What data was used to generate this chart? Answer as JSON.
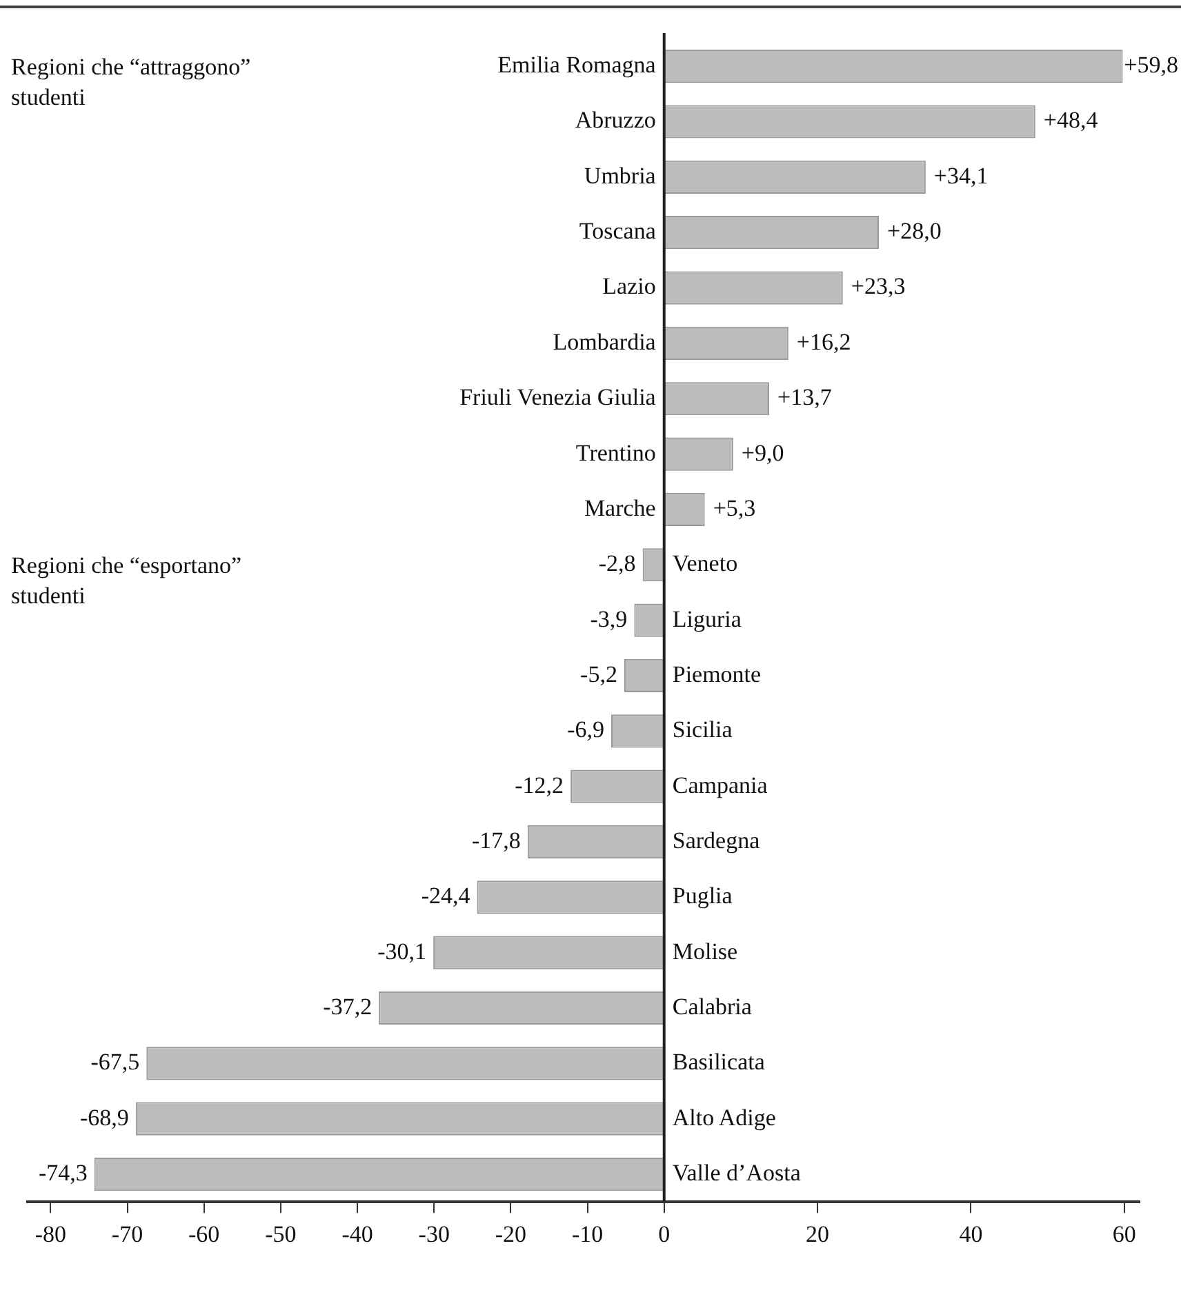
{
  "chart_data": {
    "type": "bar",
    "orientation": "horizontal",
    "categories": [
      "Emilia Romagna",
      "Abruzzo",
      "Umbria",
      "Toscana",
      "Lazio",
      "Lombardia",
      "Friuli Venezia Giulia",
      "Trentino",
      "Marche",
      "Veneto",
      "Liguria",
      "Piemonte",
      "Sicilia",
      "Campania",
      "Sardegna",
      "Puglia",
      "Molise",
      "Calabria",
      "Basilicata",
      "Alto Adige",
      "Valle d’Aosta"
    ],
    "values": [
      59.8,
      48.4,
      34.1,
      28.0,
      23.3,
      16.2,
      13.7,
      9.0,
      5.3,
      -2.8,
      -3.9,
      -5.2,
      -6.9,
      -12.2,
      -17.8,
      -24.4,
      -30.1,
      -37.2,
      -67.5,
      -68.9,
      -74.3
    ],
    "value_labels": [
      "+59,8",
      "+48,4",
      "+34,1",
      "+28,0",
      "+23,3",
      "+16,2",
      "+13,7",
      "+9,0",
      "+5,3",
      "-2,8",
      "-3,9",
      "-5,2",
      "-6,9",
      "-12,2",
      "-17,8",
      "-24,4",
      "-30,1",
      "-37,2",
      "-67,5",
      "-68,9",
      "-74,3"
    ],
    "color": "#bcbcbc",
    "xlim": [
      -83,
      62
    ],
    "xticks": [
      -80,
      -70,
      -60,
      -50,
      -40,
      -30,
      -20,
      -10,
      0,
      20,
      40,
      60
    ],
    "annotations": [
      "Regioni che “attraggono” studenti",
      "Regioni che “esportano” studenti"
    ]
  }
}
